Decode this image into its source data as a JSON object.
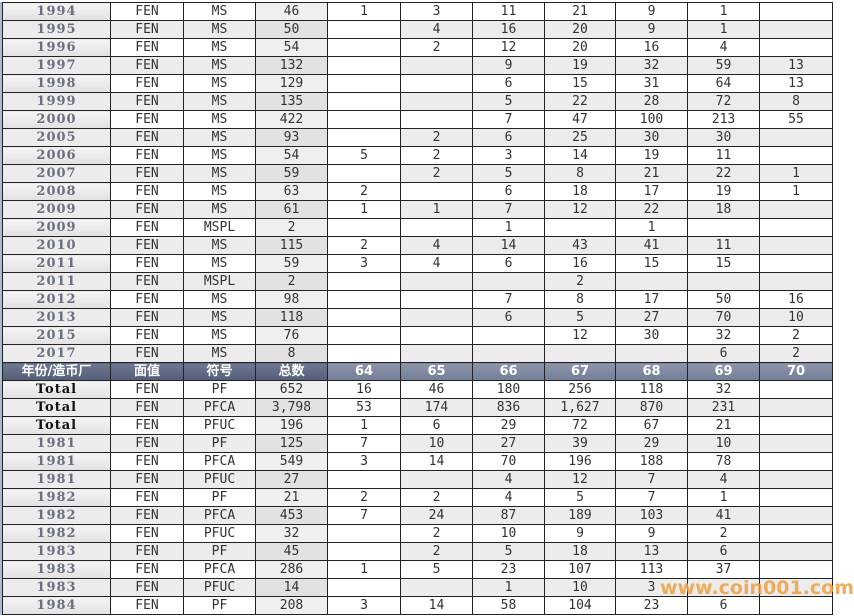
{
  "header": [
    "年份/造币厂",
    "面值",
    "符号",
    "总数",
    "64",
    "65",
    "66",
    "67",
    "68",
    "69",
    "70"
  ],
  "rows_top": [
    [
      "1994",
      "FEN",
      "MS",
      "46",
      "1",
      "3",
      "11",
      "21",
      "9",
      "1",
      ""
    ],
    [
      "1995",
      "FEN",
      "MS",
      "50",
      "",
      "4",
      "16",
      "20",
      "9",
      "1",
      ""
    ],
    [
      "1996",
      "FEN",
      "MS",
      "54",
      "",
      "2",
      "12",
      "20",
      "16",
      "4",
      ""
    ],
    [
      "1997",
      "FEN",
      "MS",
      "132",
      "",
      "",
      "9",
      "19",
      "32",
      "59",
      "13"
    ],
    [
      "1998",
      "FEN",
      "MS",
      "129",
      "",
      "",
      "6",
      "15",
      "31",
      "64",
      "13"
    ],
    [
      "1999",
      "FEN",
      "MS",
      "135",
      "",
      "",
      "5",
      "22",
      "28",
      "72",
      "8"
    ],
    [
      "2000",
      "FEN",
      "MS",
      "422",
      "",
      "",
      "7",
      "47",
      "100",
      "213",
      "55"
    ],
    [
      "2005",
      "FEN",
      "MS",
      "93",
      "",
      "2",
      "6",
      "25",
      "30",
      "30",
      ""
    ],
    [
      "2006",
      "FEN",
      "MS",
      "54",
      "5",
      "2",
      "3",
      "14",
      "19",
      "11",
      ""
    ],
    [
      "2007",
      "FEN",
      "MS",
      "59",
      "",
      "2",
      "5",
      "8",
      "21",
      "22",
      "1"
    ],
    [
      "2008",
      "FEN",
      "MS",
      "63",
      "2",
      "",
      "6",
      "18",
      "17",
      "19",
      "1"
    ],
    [
      "2009",
      "FEN",
      "MS",
      "61",
      "1",
      "1",
      "7",
      "12",
      "22",
      "18",
      ""
    ],
    [
      "2009",
      "FEN",
      "MSPL",
      "2",
      "",
      "",
      "1",
      "",
      "1",
      "",
      ""
    ],
    [
      "2010",
      "FEN",
      "MS",
      "115",
      "2",
      "4",
      "14",
      "43",
      "41",
      "11",
      ""
    ],
    [
      "2011",
      "FEN",
      "MS",
      "59",
      "3",
      "4",
      "6",
      "16",
      "15",
      "15",
      ""
    ],
    [
      "2011",
      "FEN",
      "MSPL",
      "2",
      "",
      "",
      "",
      "2",
      "",
      "",
      ""
    ],
    [
      "2012",
      "FEN",
      "MS",
      "98",
      "",
      "",
      "7",
      "8",
      "17",
      "50",
      "16"
    ],
    [
      "2013",
      "FEN",
      "MS",
      "118",
      "",
      "",
      "6",
      "5",
      "27",
      "70",
      "10"
    ],
    [
      "2015",
      "FEN",
      "MS",
      "76",
      "",
      "",
      "",
      "12",
      "30",
      "32",
      "2"
    ],
    [
      "2017",
      "FEN",
      "MS",
      "8",
      "",
      "",
      "",
      "",
      "",
      "6",
      "2"
    ]
  ],
  "rows_bottom": [
    [
      "Total",
      "FEN",
      "PF",
      "652",
      "16",
      "46",
      "180",
      "256",
      "118",
      "32",
      ""
    ],
    [
      "Total",
      "FEN",
      "PFCA",
      "3,798",
      "53",
      "174",
      "836",
      "1,627",
      "870",
      "231",
      ""
    ],
    [
      "Total",
      "FEN",
      "PFUC",
      "196",
      "1",
      "6",
      "29",
      "72",
      "67",
      "21",
      ""
    ],
    [
      "1981",
      "FEN",
      "PF",
      "125",
      "7",
      "10",
      "27",
      "39",
      "29",
      "10",
      ""
    ],
    [
      "1981",
      "FEN",
      "PFCA",
      "549",
      "3",
      "14",
      "70",
      "196",
      "188",
      "78",
      ""
    ],
    [
      "1981",
      "FEN",
      "PFUC",
      "27",
      "",
      "",
      "4",
      "12",
      "7",
      "4",
      ""
    ],
    [
      "1982",
      "FEN",
      "PF",
      "21",
      "2",
      "2",
      "4",
      "5",
      "7",
      "1",
      ""
    ],
    [
      "1982",
      "FEN",
      "PFCA",
      "453",
      "7",
      "24",
      "87",
      "189",
      "103",
      "41",
      ""
    ],
    [
      "1982",
      "FEN",
      "PFUC",
      "32",
      "",
      "2",
      "10",
      "9",
      "9",
      "2",
      ""
    ],
    [
      "1983",
      "FEN",
      "PF",
      "45",
      "",
      "2",
      "5",
      "18",
      "13",
      "6",
      ""
    ],
    [
      "1983",
      "FEN",
      "PFCA",
      "286",
      "1",
      "5",
      "23",
      "107",
      "113",
      "37",
      ""
    ],
    [
      "1983",
      "FEN",
      "PFUC",
      "14",
      "",
      "",
      "1",
      "10",
      "3",
      "",
      ""
    ],
    [
      "1984",
      "FEN",
      "PF",
      "208",
      "3",
      "14",
      "58",
      "104",
      "23",
      "6",
      ""
    ]
  ],
  "watermark": "www.coin001.com",
  "colors": {
    "header_bg": "#5f6983",
    "year_text": "#6b7080",
    "watermark": "#f0a040"
  }
}
